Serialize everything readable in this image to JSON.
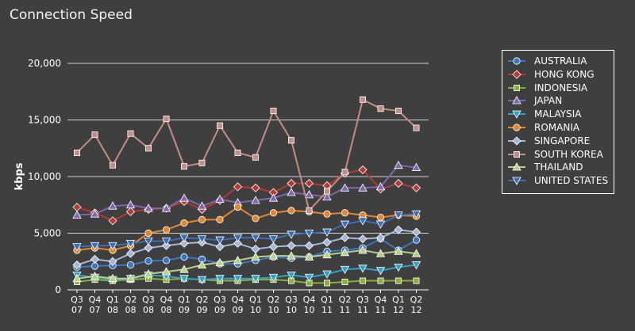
{
  "chart_data": {
    "type": "line",
    "title": "Connection Speed",
    "ylabel": "kbps",
    "xlabel": "",
    "ylim": [
      0,
      20000
    ],
    "yticks": [
      "0",
      "5,000",
      "10,000",
      "15,000",
      "20,000"
    ],
    "yticks_values": [
      0,
      5000,
      10000,
      15000,
      20000
    ],
    "grid": true,
    "legend_position": "right",
    "categories": [
      "Q3 07",
      "Q4 07",
      "Q1 08",
      "Q2 08",
      "Q3 08",
      "Q4 08",
      "Q1 09",
      "Q2 09",
      "Q3 09",
      "Q4 09",
      "Q1 10",
      "Q2 10",
      "Q3 10",
      "Q4 10",
      "Q1 11",
      "Q2 11",
      "Q3 11",
      "Q4 11",
      "Q1 12",
      "Q2 12"
    ],
    "category_lines": [
      [
        "Q3",
        "07"
      ],
      [
        "Q4",
        "07"
      ],
      [
        "Q1",
        "08"
      ],
      [
        "Q2",
        "08"
      ],
      [
        "Q3",
        "08"
      ],
      [
        "Q4",
        "08"
      ],
      [
        "Q1",
        "09"
      ],
      [
        "Q2",
        "09"
      ],
      [
        "Q3",
        "09"
      ],
      [
        "Q4",
        "09"
      ],
      [
        "Q1",
        "10"
      ],
      [
        "Q2",
        "10"
      ],
      [
        "Q3",
        "10"
      ],
      [
        "Q4",
        "10"
      ],
      [
        "Q1",
        "11"
      ],
      [
        "Q2",
        "11"
      ],
      [
        "Q3",
        "11"
      ],
      [
        "Q4",
        "11"
      ],
      [
        "Q1",
        "12"
      ],
      [
        "Q2",
        "12"
      ]
    ],
    "series": [
      {
        "name": "AUSTRALIA",
        "color": "#3b78c4",
        "marker": "circle",
        "values": [
          2000,
          2100,
          2150,
          2200,
          2550,
          2600,
          2900,
          2700,
          2300,
          2300,
          2600,
          2900,
          2800,
          2900,
          3400,
          3500,
          3700,
          4500,
          3500,
          4400
        ]
      },
      {
        "name": "HONG KONG",
        "color": "#b53a35",
        "marker": "diamond",
        "values": [
          7300,
          6800,
          6100,
          6900,
          7100,
          7200,
          7800,
          7100,
          7900,
          9100,
          9000,
          8600,
          9400,
          9400,
          9200,
          10300,
          10600,
          8900,
          9400,
          9000
        ]
      },
      {
        "name": "INDONESIA",
        "color": "#8cae3c",
        "marker": "square",
        "values": [
          700,
          900,
          800,
          900,
          1000,
          900,
          1000,
          900,
          800,
          800,
          900,
          900,
          800,
          600,
          600,
          700,
          800,
          800,
          800,
          800
        ]
      },
      {
        "name": "JAPAN",
        "color": "#8066aa",
        "marker": "triangle",
        "values": [
          6600,
          6700,
          7400,
          7500,
          7200,
          7200,
          8100,
          7400,
          8000,
          7700,
          7900,
          8100,
          8600,
          8400,
          8200,
          9000,
          9000,
          9100,
          11000,
          10800
        ]
      },
      {
        "name": "MALAYSIA",
        "color": "#31a2c4",
        "marker": "triangle-down",
        "values": [
          1300,
          1100,
          900,
          1000,
          1300,
          1200,
          1000,
          900,
          1000,
          1000,
          1000,
          1100,
          1300,
          1100,
          1400,
          1800,
          1900,
          1700,
          2000,
          2200
        ]
      },
      {
        "name": "ROMANIA",
        "color": "#e6852f",
        "marker": "circle",
        "values": [
          3500,
          3700,
          3500,
          3900,
          5000,
          5300,
          5900,
          6200,
          6200,
          7300,
          6300,
          6800,
          7000,
          6900,
          6700,
          6800,
          6600,
          6400,
          6600,
          6500
        ]
      },
      {
        "name": "SINGAPORE",
        "color": "#a6b6d7",
        "marker": "diamond",
        "values": [
          2200,
          2700,
          2500,
          3200,
          3700,
          3900,
          4100,
          4200,
          3800,
          4100,
          3600,
          3800,
          3900,
          3900,
          4200,
          4600,
          4500,
          4600,
          5300,
          5100
        ]
      },
      {
        "name": "SOUTH KOREA",
        "color": "#c08d8b",
        "marker": "square",
        "values": [
          12100,
          13700,
          11000,
          13800,
          12500,
          15100,
          10900,
          11200,
          14500,
          12100,
          11700,
          15800,
          13200,
          7000,
          8700,
          10400,
          16800,
          16000,
          15800,
          14300
        ]
      },
      {
        "name": "THAILAND",
        "color": "#b8cf8a",
        "marker": "triangle",
        "values": [
          1000,
          1200,
          1000,
          1000,
          1400,
          1600,
          1800,
          2200,
          2400,
          2600,
          2900,
          3000,
          3000,
          2900,
          3100,
          3300,
          3500,
          3200,
          3400,
          3200
        ]
      },
      {
        "name": "UNITED STATES",
        "color": "#3a6fb5",
        "marker": "triangle-down",
        "values": [
          3800,
          3900,
          3900,
          4100,
          4300,
          4300,
          4600,
          4500,
          4400,
          4600,
          4600,
          4500,
          4900,
          5000,
          5100,
          5800,
          6100,
          5800,
          6600,
          6700
        ]
      }
    ]
  }
}
